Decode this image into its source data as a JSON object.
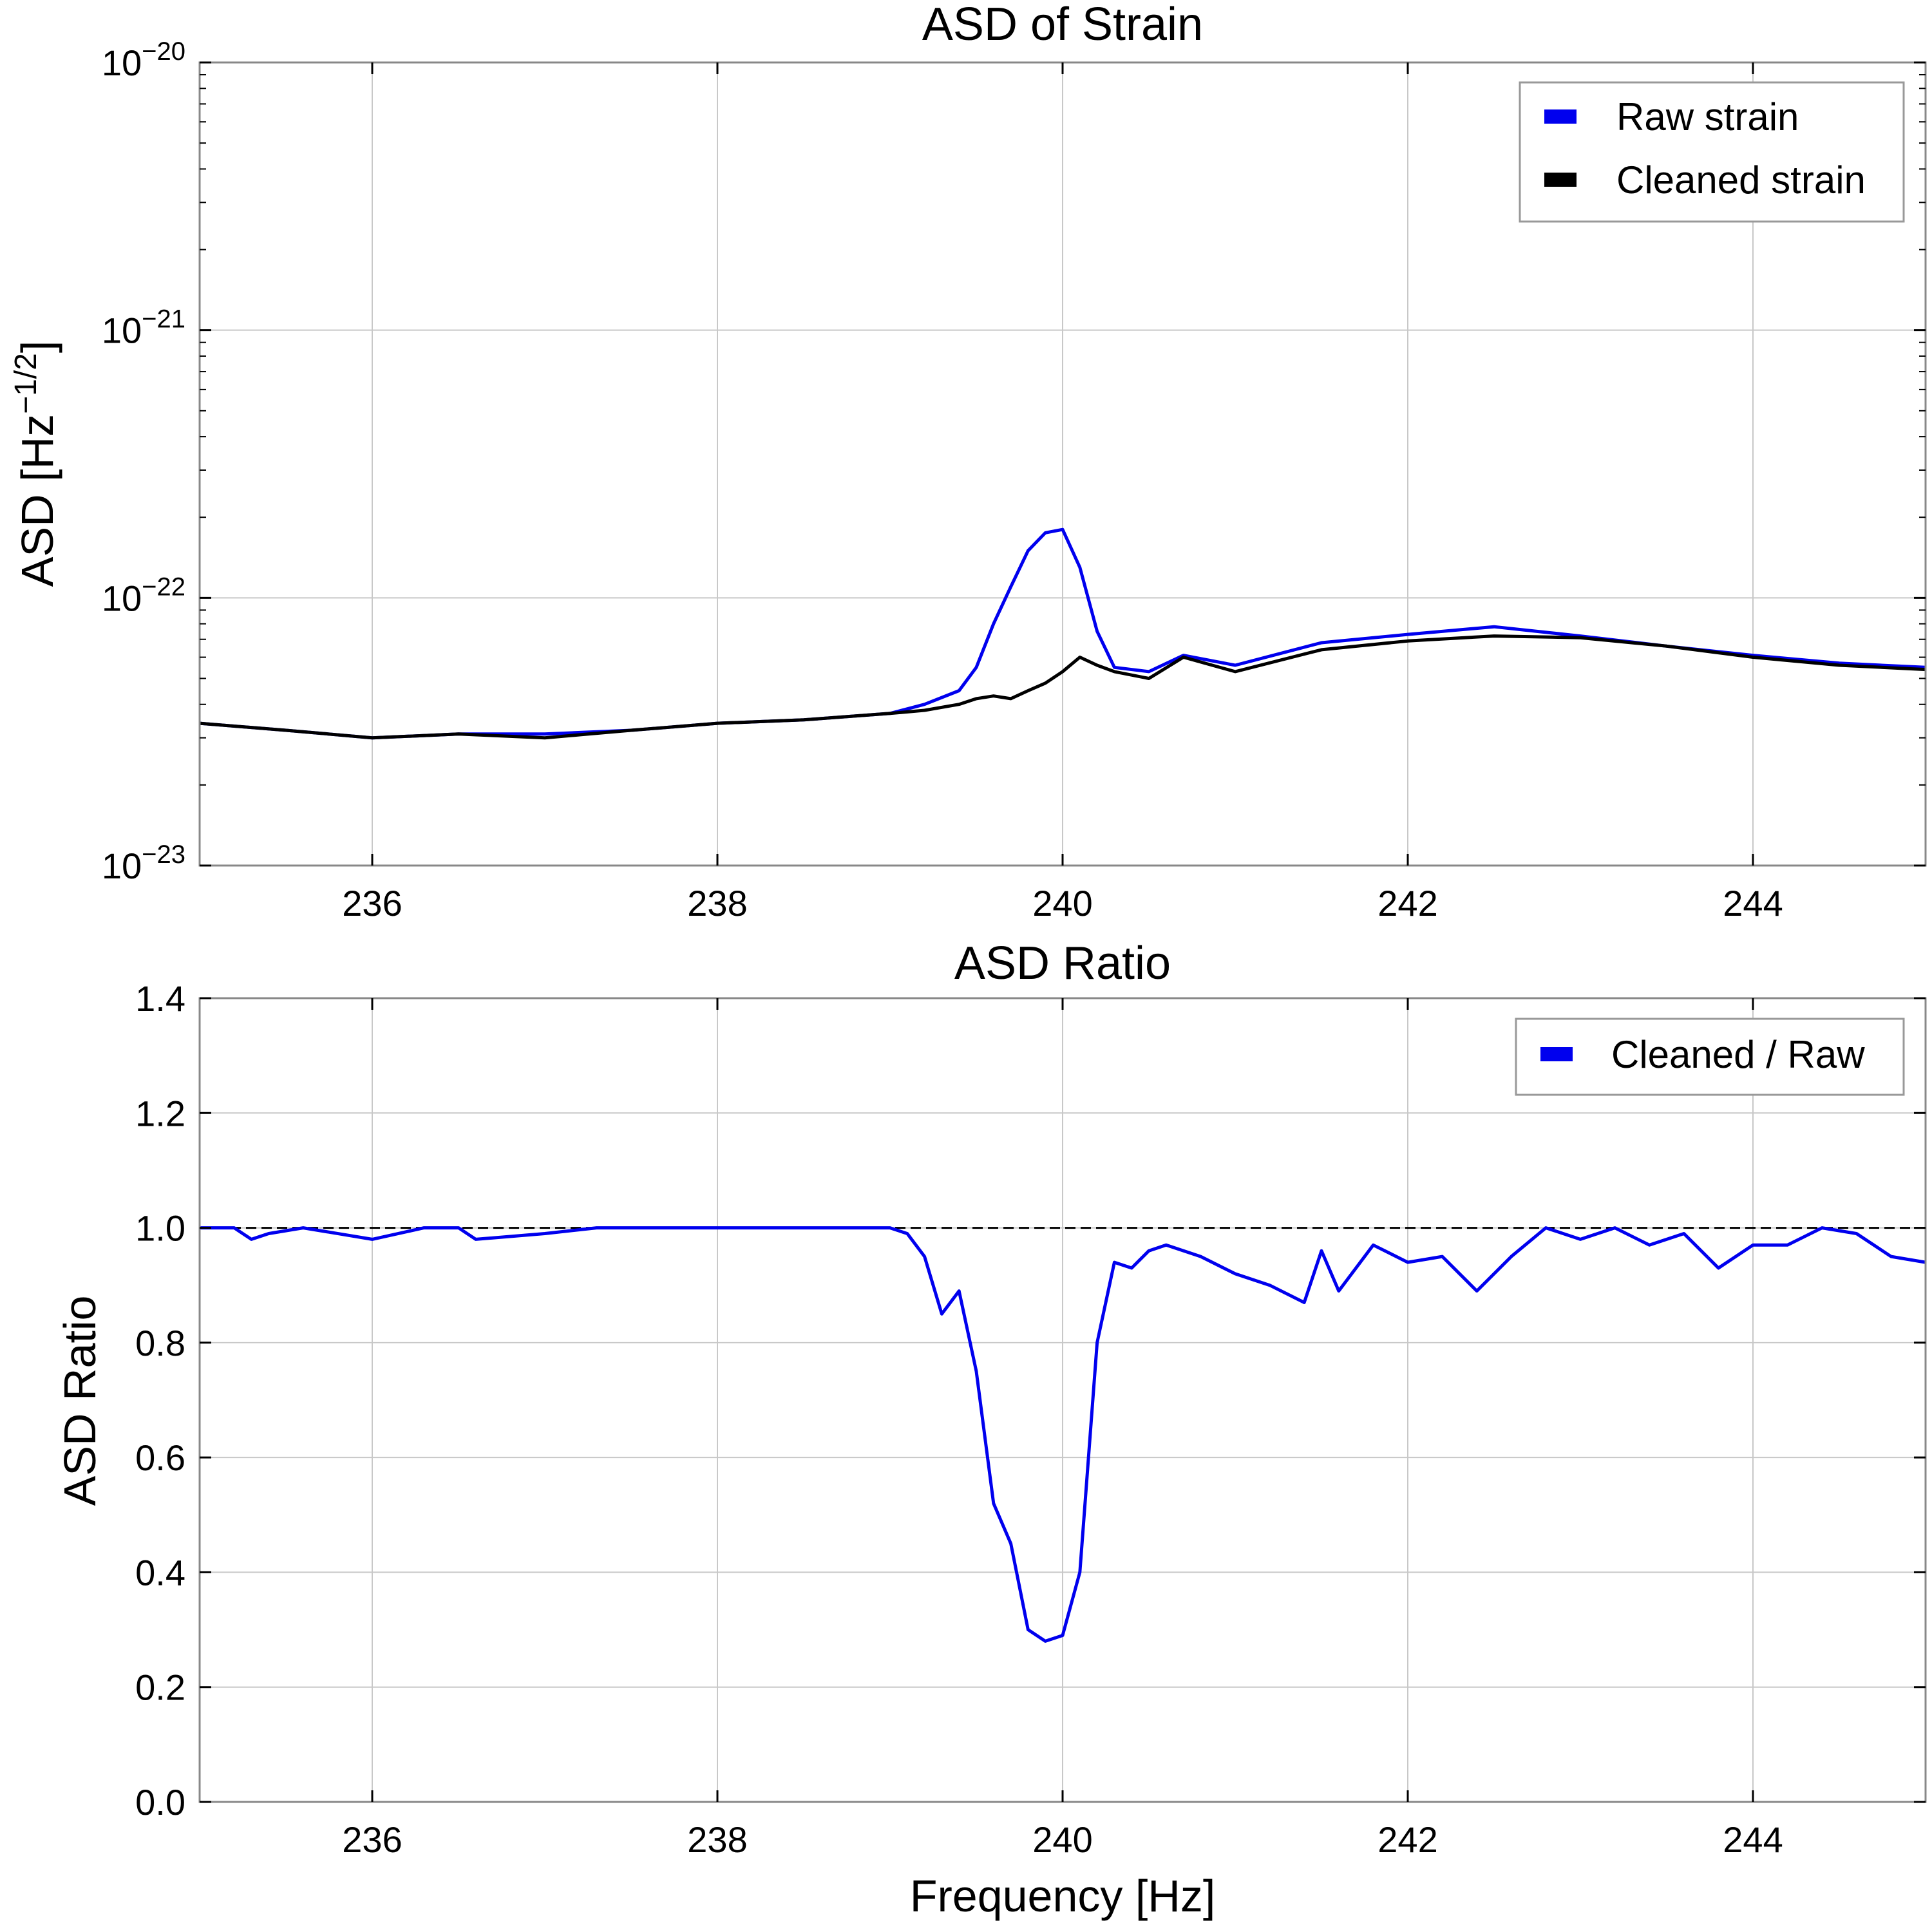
{
  "chart_data": [
    {
      "type": "line",
      "title": "ASD of Strain",
      "xlabel": "",
      "ylabel": "ASD [Hz",
      "ylabel_superscript": "−1/2",
      "ylabel_close": "]",
      "yscale": "log",
      "xlim": [
        235,
        245
      ],
      "ylim": [
        1e-23,
        1e-20
      ],
      "x_ticks": [
        236,
        238,
        240,
        242,
        244
      ],
      "x_tick_labels": [
        "236",
        "238",
        "240",
        "242",
        "244"
      ],
      "y_ticks": [
        1e-23,
        1e-22,
        1e-21,
        1e-20
      ],
      "y_tick_labels": [
        {
          "base": "10",
          "exp": "−23"
        },
        {
          "base": "10",
          "exp": "−22"
        },
        {
          "base": "10",
          "exp": "−21"
        },
        {
          "base": "10",
          "exp": "−20"
        }
      ],
      "grid": true,
      "legend_position": "top-right",
      "series": [
        {
          "name": "Raw strain",
          "color": "#0000ee",
          "x": [
            235.0,
            235.5,
            236.0,
            236.5,
            237.0,
            237.5,
            238.0,
            238.5,
            239.0,
            239.2,
            239.4,
            239.5,
            239.6,
            239.7,
            239.8,
            239.9,
            240.0,
            240.1,
            240.2,
            240.3,
            240.5,
            240.7,
            241.0,
            241.5,
            242.0,
            242.5,
            243.0,
            243.5,
            244.0,
            244.5,
            245.0
          ],
          "y": [
            3.4e-23,
            3.2e-23,
            3e-23,
            3.1e-23,
            3.1e-23,
            3.2e-23,
            3.4e-23,
            3.5e-23,
            3.7e-23,
            4e-23,
            4.5e-23,
            5.5e-23,
            8e-23,
            1.1e-22,
            1.5e-22,
            1.75e-22,
            1.8e-22,
            1.3e-22,
            7.5e-23,
            5.5e-23,
            5.3e-23,
            6.1e-23,
            5.6e-23,
            6.8e-23,
            7.3e-23,
            7.8e-23,
            7.2e-23,
            6.6e-23,
            6.1e-23,
            5.7e-23,
            5.5e-23
          ]
        },
        {
          "name": "Cleaned strain",
          "color": "#000000",
          "x": [
            235.0,
            235.5,
            236.0,
            236.5,
            237.0,
            237.5,
            238.0,
            238.5,
            239.0,
            239.2,
            239.4,
            239.5,
            239.6,
            239.7,
            239.8,
            239.9,
            240.0,
            240.1,
            240.2,
            240.3,
            240.5,
            240.7,
            241.0,
            241.5,
            242.0,
            242.5,
            243.0,
            243.5,
            244.0,
            244.5,
            245.0
          ],
          "y": [
            3.4e-23,
            3.2e-23,
            3e-23,
            3.1e-23,
            3e-23,
            3.2e-23,
            3.4e-23,
            3.5e-23,
            3.7e-23,
            3.8e-23,
            4e-23,
            4.2e-23,
            4.3e-23,
            4.2e-23,
            4.5e-23,
            4.8e-23,
            5.3e-23,
            6e-23,
            5.6e-23,
            5.3e-23,
            5e-23,
            6e-23,
            5.3e-23,
            6.4e-23,
            6.9e-23,
            7.2e-23,
            7.1e-23,
            6.6e-23,
            6e-23,
            5.6e-23,
            5.4e-23
          ]
        }
      ]
    },
    {
      "type": "line",
      "title": "ASD Ratio",
      "xlabel": "Frequency [Hz]",
      "ylabel": "ASD Ratio",
      "xlim": [
        235,
        245
      ],
      "ylim": [
        0.0,
        1.4
      ],
      "x_ticks": [
        236,
        238,
        240,
        242,
        244
      ],
      "x_tick_labels": [
        "236",
        "238",
        "240",
        "242",
        "244"
      ],
      "y_ticks": [
        0.0,
        0.2,
        0.4,
        0.6,
        0.8,
        1.0,
        1.2,
        1.4
      ],
      "y_tick_labels": [
        "0.0",
        "0.2",
        "0.4",
        "0.6",
        "0.8",
        "1.0",
        "1.2",
        "1.4"
      ],
      "grid": true,
      "legend_position": "top-right",
      "reference_line": {
        "y": 1.0,
        "color": "#000000",
        "style": "dashed"
      },
      "series": [
        {
          "name": "Cleaned / Raw",
          "color": "#0000ee",
          "x": [
            235.0,
            235.2,
            235.3,
            235.4,
            235.6,
            236.0,
            236.3,
            236.5,
            236.6,
            237.0,
            237.3,
            238.0,
            239.0,
            239.1,
            239.2,
            239.3,
            239.4,
            239.5,
            239.6,
            239.7,
            239.8,
            239.9,
            240.0,
            240.1,
            240.2,
            240.3,
            240.4,
            240.5,
            240.6,
            240.8,
            241.0,
            241.2,
            241.4,
            241.5,
            241.6,
            241.8,
            242.0,
            242.2,
            242.4,
            242.6,
            242.8,
            243.0,
            243.2,
            243.4,
            243.6,
            243.8,
            244.0,
            244.2,
            244.4,
            244.6,
            244.8,
            245.0
          ],
          "y": [
            1.0,
            1.0,
            0.98,
            0.99,
            1.0,
            0.98,
            1.0,
            1.0,
            0.98,
            0.99,
            1.0,
            1.0,
            1.0,
            0.99,
            0.95,
            0.85,
            0.89,
            0.75,
            0.52,
            0.45,
            0.3,
            0.28,
            0.29,
            0.4,
            0.8,
            0.94,
            0.93,
            0.96,
            0.97,
            0.95,
            0.92,
            0.9,
            0.87,
            0.96,
            0.89,
            0.97,
            0.94,
            0.95,
            0.89,
            0.95,
            1.0,
            0.98,
            1.0,
            0.97,
            0.99,
            0.93,
            0.97,
            0.97,
            1.0,
            0.99,
            0.95,
            0.94
          ]
        }
      ]
    }
  ]
}
